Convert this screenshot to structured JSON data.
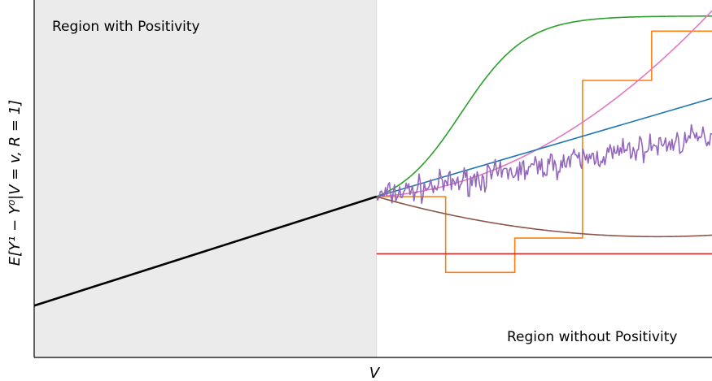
{
  "chart_data": {
    "type": "line",
    "xlabel": "V",
    "ylabel": "E[Y¹ − Y⁰|V = v, R = 1]",
    "annotations": {
      "positivity_region": "Region with Positivity",
      "no_positivity_region": "Region without Positivity"
    },
    "xlim": [
      0,
      1
    ],
    "ylim": [
      0,
      1
    ],
    "grid": false,
    "positivity_boundary_x": 0.505,
    "observed": {
      "color": "#000000",
      "x": [
        0,
        0.505
      ],
      "y": [
        0.145,
        0.45
      ]
    },
    "extrapolations": [
      {
        "color": "#2ca02c",
        "kind": "sigmoid",
        "x0": 0.505,
        "y0": 0.45,
        "ymax": 0.955,
        "mid": 0.63,
        "scale": 0.048
      },
      {
        "color": "#ff7f0e",
        "kind": "step",
        "x": [
          0.505,
          0.607,
          0.607,
          0.709,
          0.709,
          0.809,
          0.809,
          0.911,
          0.911,
          0.961,
          0.961,
          1.0
        ],
        "y": [
          0.45,
          0.45,
          0.238,
          0.238,
          0.334,
          0.334,
          0.775,
          0.775,
          0.913,
          0.913,
          0.913,
          0.913
        ]
      },
      {
        "color": "#e377c2",
        "kind": "quadratic",
        "x0": 0.505,
        "y0": 0.45,
        "x1": 1.0,
        "y1": 0.97,
        "s0": 0.05
      },
      {
        "color": "#1f77b4",
        "kind": "linear",
        "x0": 0.505,
        "y0": 0.45,
        "x1": 1.0,
        "y1": 0.725
      },
      {
        "color": "#9467bd",
        "kind": "noisy",
        "x0": 0.505,
        "y0": 0.45,
        "x1": 1.0,
        "y1": 0.62,
        "noise": 0.018
      },
      {
        "color": "#8c564b",
        "kind": "quadratic",
        "x0": 0.505,
        "y0": 0.45,
        "xmin": 0.92,
        "ymin": 0.338,
        "x1": 1.0,
        "y1": 0.34
      },
      {
        "color": "#d62728",
        "kind": "constant",
        "x0": 0.505,
        "x1": 1.0,
        "y": 0.29
      }
    ]
  }
}
